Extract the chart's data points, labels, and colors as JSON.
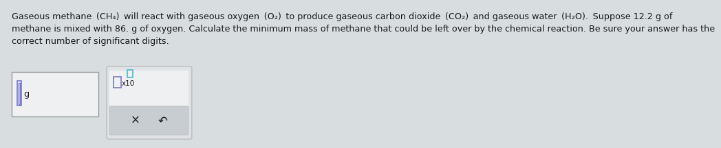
{
  "bg_color": "#d8dde0",
  "text_color": "#1a1a1a",
  "line1": "Gaseous methane  (CH₄)  will react with gaseous oxygen  (O₂)  to produce gaseous carbon dioxide  (CO₂)  and gaseous water  (H₂O).  Suppose 12.2 g of",
  "line2": "methane is mixed with 86. g of oxygen. Calculate the minimum mass of methane that could be left over by the chemical reaction. Be sure your answer has the",
  "line3": "correct number of significant digits.",
  "fontsize_main": 9.2,
  "fontsize_small": 7.5,
  "fontsize_btn": 12,
  "box1_facecolor": "#eef0f2",
  "box1_edgecolor": "#999999",
  "box2_facecolor": "#eef0f2",
  "box2_edgecolor": "#999999",
  "box2_outer_facecolor": "#e0e3e6",
  "box2_outer_edgecolor": "#bbbbbb",
  "btnbar_facecolor": "#c8cdd1",
  "btnbar_edgecolor": "#bbbbbb",
  "cursor_facecolor": "#7777cc",
  "cursor_edgecolor": "#7777cc",
  "sq_edgecolor": "#7777cc",
  "exp_sq_edgecolor": "#44bbcc",
  "x_btn": "×",
  "undo_btn": "↶",
  "g_label": "g",
  "x10_label": "x10"
}
